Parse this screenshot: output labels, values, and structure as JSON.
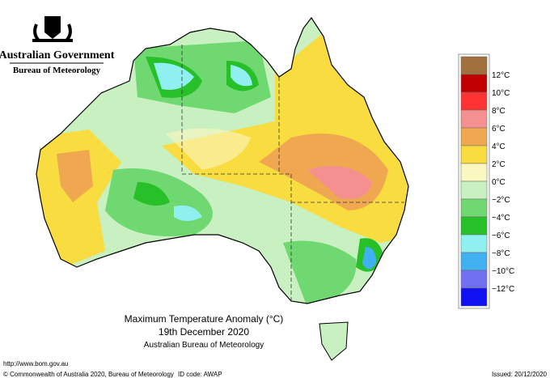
{
  "header": {
    "government": "Australian Government",
    "bureau": "Bureau of Meteorology"
  },
  "map": {
    "title": "Maximum Temperature Anomaly (°C)",
    "date": "19th December 2020",
    "source": "Australian Bureau of Meteorology"
  },
  "legend": {
    "colors": [
      "#a0703c",
      "#c00000",
      "#ff3333",
      "#f59090",
      "#f0a850",
      "#f8dc40",
      "#fbf7c0",
      "#c8f0c0",
      "#70d870",
      "#28c028",
      "#90f0f0",
      "#40b0f0",
      "#7070f0",
      "#1010f0"
    ],
    "labels": [
      "12°C",
      "10°C",
      "8°C",
      "6°C",
      "4°C",
      "2°C",
      "0°C",
      "−2°C",
      "−4°C",
      "−6°C",
      "−8°C",
      "−10°C",
      "−12°C"
    ]
  },
  "footer": {
    "url": "http://www.bom.gov.au",
    "copyright": "© Commonwealth of Australia 2020, Bureau of Meteorology",
    "id_code": "ID code: AWAP",
    "issued": "Issued: 20/12/2020"
  }
}
